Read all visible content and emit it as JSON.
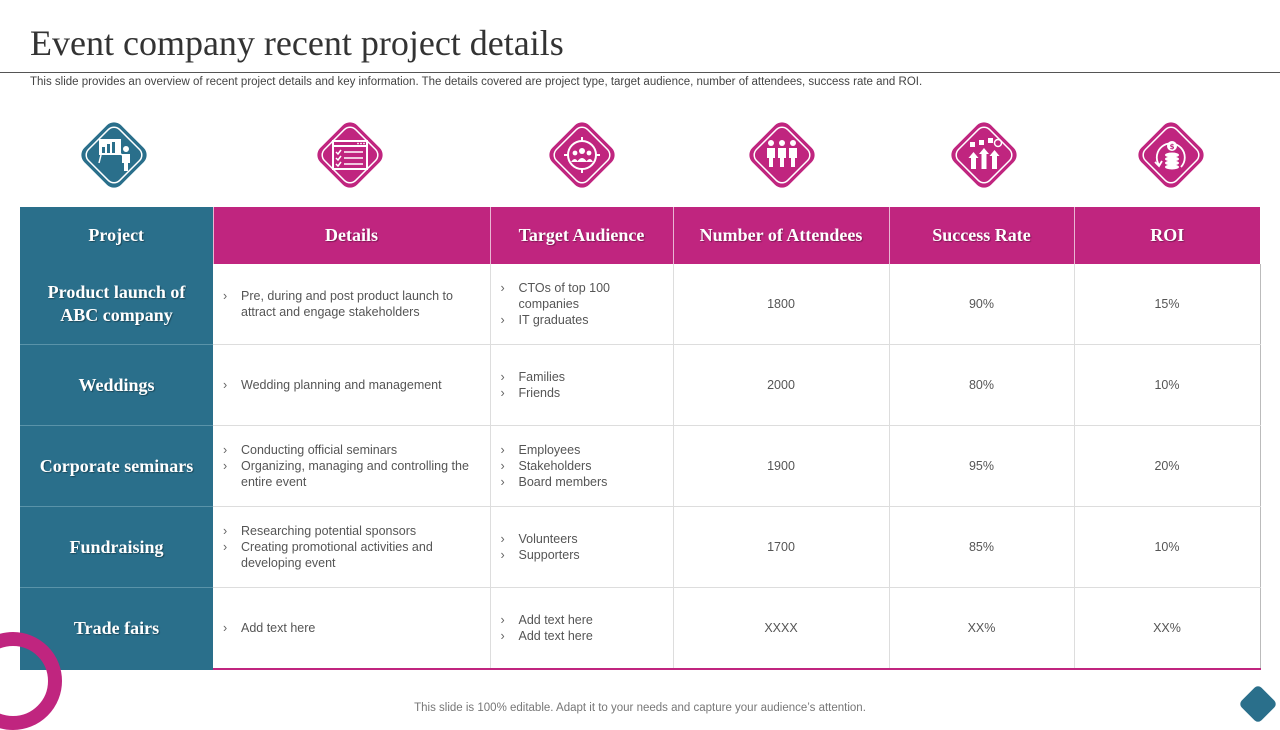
{
  "title": "Event company recent project details",
  "subtitle": "This slide provides an overview of recent project details and key information. The details covered are project type, target audience, number of attendees, success rate and ROI.",
  "colors": {
    "teal": "#2a6f8b",
    "magenta": "#c0257f"
  },
  "icons": [
    "presentation-icon",
    "checklist-icon",
    "audience-target-icon",
    "attendees-icon",
    "success-chart-icon",
    "roi-coins-icon"
  ],
  "headers": [
    "Project",
    "Details",
    "Target Audience",
    "Number of Attendees",
    "Success Rate",
    "ROI"
  ],
  "rows": [
    {
      "project": "Product launch of ABC company",
      "details": [
        "Pre, during and post product launch to attract and engage stakeholders"
      ],
      "audience": [
        "CTOs of top 100 companies",
        "IT graduates"
      ],
      "attendees": "1800",
      "success": "90%",
      "roi": "15%"
    },
    {
      "project": "Weddings",
      "details": [
        "Wedding planning and management"
      ],
      "audience": [
        "Families",
        "Friends"
      ],
      "attendees": "2000",
      "success": "80%",
      "roi": "10%"
    },
    {
      "project": "Corporate seminars",
      "details": [
        "Conducting official seminars",
        "Organizing, managing and controlling the entire event"
      ],
      "audience": [
        "Employees",
        "Stakeholders",
        "Board members"
      ],
      "attendees": "1900",
      "success": "95%",
      "roi": "20%"
    },
    {
      "project": "Fundraising",
      "details": [
        "Researching potential sponsors",
        "Creating promotional activities and developing  event"
      ],
      "audience": [
        "Volunteers",
        "Supporters"
      ],
      "attendees": "1700",
      "success": "85%",
      "roi": "10%"
    },
    {
      "project": "Trade fairs",
      "details": [
        "Add text here"
      ],
      "audience": [
        "Add text here",
        "Add text here"
      ],
      "attendees": "XXXX",
      "success": "XX%",
      "roi": "XX%"
    }
  ],
  "footer": "This slide is 100% editable. Adapt it to your needs and capture your audience’s attention."
}
